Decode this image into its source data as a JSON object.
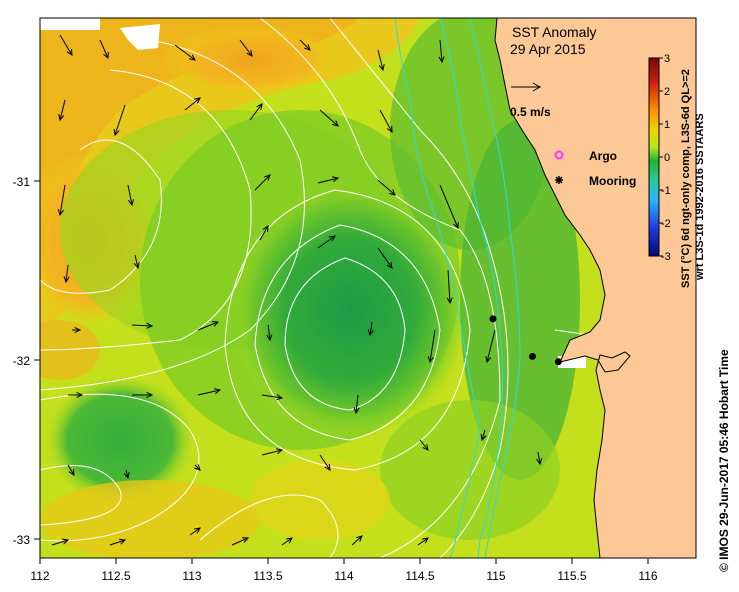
{
  "title": {
    "line1": "SST Anomaly",
    "line2": "29 Apr 2015"
  },
  "scale_arrow": {
    "label": "0.5 m/s"
  },
  "legend": {
    "items": [
      {
        "label": "Argo",
        "symbol": "magenta-ring-icon",
        "color": "#ff33ff"
      },
      {
        "label": "Mooring",
        "symbol": "black-star-icon",
        "color": "#000000"
      }
    ]
  },
  "colorbar": {
    "ticks": [
      "3",
      "2",
      "1",
      "0",
      "-1",
      "-2",
      "-3"
    ],
    "title": "SST (°C) 6d ngt-only comp, L3S-6d QL>=2",
    "subtitle": "wrt L3S-1d 1992-2016 SSTAARS",
    "colors": [
      "#7a0a0a",
      "#c81e0a",
      "#ff8c00",
      "#f0d200",
      "#b4e61e",
      "#1eb432",
      "#28c8a0",
      "#28b4ff",
      "#1e3cdc",
      "#000a78"
    ]
  },
  "credit": "© IMOS 29-Jun-2017 05:46 Hobart Time",
  "axes": {
    "x_ticks": [
      "112",
      "112.5",
      "113",
      "113.5",
      "114",
      "114.5",
      "115",
      "115.5",
      "116"
    ],
    "y_ticks": [
      "-31",
      "-32",
      "-33"
    ]
  },
  "colors": {
    "land": "#fcc896",
    "warm": "#f0a01e",
    "yellow": "#e6dc14",
    "yellowgreen": "#b4dc1e",
    "green": "#3cb43c",
    "darkgreen": "#1e9640",
    "contour": "#ffffff",
    "isobath": "#28dcdc"
  },
  "moorings": [
    {
      "lon": 114.98,
      "lat": -31.77
    },
    {
      "lon": 115.24,
      "lat": -31.98
    },
    {
      "lon": 115.41,
      "lat": -32.01
    }
  ]
}
